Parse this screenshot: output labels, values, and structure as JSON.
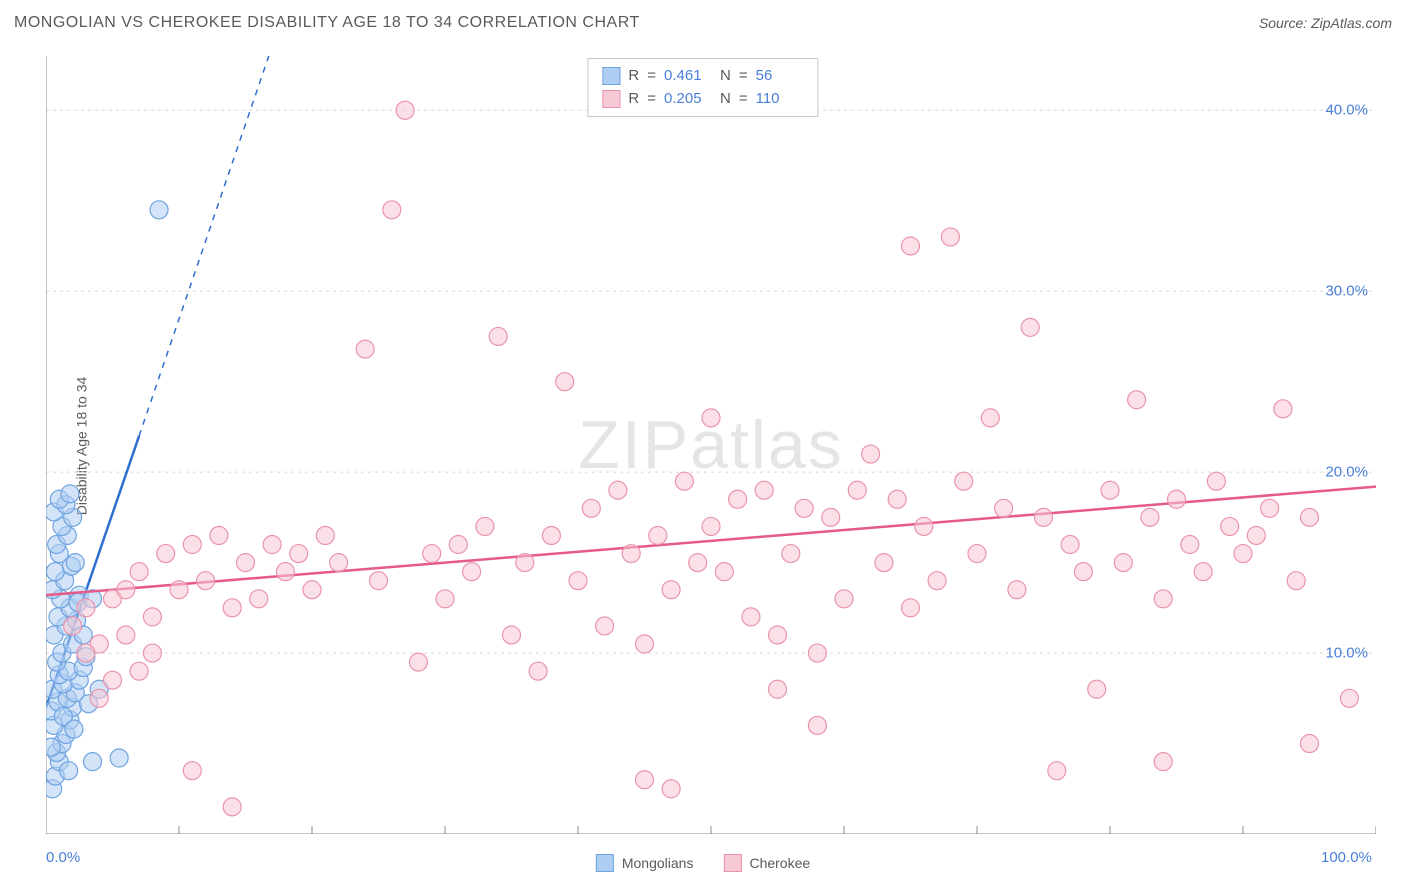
{
  "header": {
    "title": "MONGOLIAN VS CHEROKEE DISABILITY AGE 18 TO 34 CORRELATION CHART",
    "source_prefix": "Source: ",
    "source": "ZipAtlas.com"
  },
  "watermark": {
    "a": "ZIP",
    "b": "atlas"
  },
  "chart": {
    "type": "scatter",
    "ylabel": "Disability Age 18 to 34",
    "xlim": [
      0,
      100
    ],
    "ylim": [
      0,
      43
    ],
    "xticks": [
      0,
      10,
      20,
      30,
      40,
      50,
      60,
      70,
      80,
      90,
      100
    ],
    "xtick_labels": {
      "0": "0.0%",
      "100": "100.0%"
    },
    "yticks": [
      10,
      20,
      30,
      40
    ],
    "ytick_labels": {
      "10": "10.0%",
      "20": "20.0%",
      "30": "30.0%",
      "40": "40.0%"
    },
    "background_color": "#ffffff",
    "grid_color": "#d8d8d8",
    "axis_color": "#888888",
    "tick_label_color": "#4a7fd8",
    "marker_radius": 9,
    "marker_stroke_width": 1.2,
    "trend_line_width": 2.5,
    "series": [
      {
        "key": "mongolians",
        "name": "Mongolians",
        "fill": "#aecdf2",
        "stroke": "#6fa3e0",
        "trend_color": "#2f6fd0",
        "R": "0.461",
        "N": "56",
        "trend": {
          "x1": 0,
          "y1": 7,
          "x2_solid": 7,
          "y2_solid": 22,
          "x2_dash": 20,
          "y2_dash": 50
        },
        "points": [
          [
            0.5,
            2.5
          ],
          [
            0.7,
            3.2
          ],
          [
            1.0,
            4.0
          ],
          [
            0.8,
            4.5
          ],
          [
            1.2,
            5.0
          ],
          [
            1.5,
            5.5
          ],
          [
            0.6,
            6.0
          ],
          [
            1.8,
            6.3
          ],
          [
            0.4,
            6.8
          ],
          [
            2.0,
            7.0
          ],
          [
            0.9,
            7.3
          ],
          [
            1.6,
            7.5
          ],
          [
            2.2,
            7.8
          ],
          [
            0.5,
            8.0
          ],
          [
            1.3,
            8.3
          ],
          [
            2.5,
            8.5
          ],
          [
            1.0,
            8.8
          ],
          [
            1.7,
            9.0
          ],
          [
            0.8,
            9.5
          ],
          [
            2.8,
            9.2
          ],
          [
            3.5,
            4.0
          ],
          [
            5.5,
            4.2
          ],
          [
            1.2,
            10.0
          ],
          [
            2.0,
            10.5
          ],
          [
            0.6,
            11.0
          ],
          [
            1.5,
            11.5
          ],
          [
            2.3,
            11.8
          ],
          [
            0.9,
            12.0
          ],
          [
            1.8,
            12.5
          ],
          [
            3.0,
            9.8
          ],
          [
            1.1,
            13.0
          ],
          [
            0.5,
            13.5
          ],
          [
            2.5,
            13.2
          ],
          [
            1.4,
            14.0
          ],
          [
            0.7,
            14.5
          ],
          [
            1.9,
            14.8
          ],
          [
            1.0,
            15.5
          ],
          [
            2.2,
            15.0
          ],
          [
            0.8,
            16.0
          ],
          [
            1.6,
            16.5
          ],
          [
            1.2,
            17.0
          ],
          [
            2.0,
            17.5
          ],
          [
            0.6,
            17.8
          ],
          [
            1.5,
            18.2
          ],
          [
            1.0,
            18.5
          ],
          [
            1.8,
            18.8
          ],
          [
            2.4,
            12.8
          ],
          [
            8.5,
            34.5
          ],
          [
            3.2,
            7.2
          ],
          [
            4.0,
            8.0
          ],
          [
            2.8,
            11.0
          ],
          [
            3.5,
            13.0
          ],
          [
            1.3,
            6.5
          ],
          [
            2.1,
            5.8
          ],
          [
            0.4,
            4.8
          ],
          [
            1.7,
            3.5
          ]
        ]
      },
      {
        "key": "cherokee",
        "name": "Cherokee",
        "fill": "#f7c9d4",
        "stroke": "#ea94ac",
        "trend_color": "#e65a8a",
        "R": "0.205",
        "N": "110",
        "trend": {
          "x1": 0,
          "y1": 13.2,
          "x2_solid": 100,
          "y2_solid": 19.2
        },
        "points": [
          [
            2,
            11.5
          ],
          [
            3,
            12.5
          ],
          [
            4,
            10.5
          ],
          [
            5,
            13.0
          ],
          [
            6,
            11.0
          ],
          [
            7,
            14.5
          ],
          [
            8,
            12.0
          ],
          [
            9,
            15.5
          ],
          [
            10,
            13.5
          ],
          [
            11,
            16.0
          ],
          [
            12,
            14.0
          ],
          [
            13,
            16.5
          ],
          [
            14,
            12.5
          ],
          [
            15,
            15.0
          ],
          [
            16,
            13.0
          ],
          [
            17,
            16.0
          ],
          [
            18,
            14.5
          ],
          [
            19,
            15.5
          ],
          [
            20,
            13.5
          ],
          [
            21,
            16.5
          ],
          [
            22,
            15.0
          ],
          [
            24,
            26.8
          ],
          [
            25,
            14.0
          ],
          [
            26,
            34.5
          ],
          [
            27,
            40.0
          ],
          [
            14,
            1.5
          ],
          [
            28,
            9.5
          ],
          [
            29,
            15.5
          ],
          [
            30,
            13.0
          ],
          [
            31,
            16.0
          ],
          [
            32,
            14.5
          ],
          [
            33,
            17.0
          ],
          [
            34,
            27.5
          ],
          [
            35,
            11.0
          ],
          [
            36,
            15.0
          ],
          [
            37,
            9.0
          ],
          [
            38,
            16.5
          ],
          [
            39,
            25.0
          ],
          [
            40,
            14.0
          ],
          [
            41,
            18.0
          ],
          [
            42,
            11.5
          ],
          [
            43,
            19.0
          ],
          [
            44,
            15.5
          ],
          [
            45,
            3.0
          ],
          [
            45,
            10.5
          ],
          [
            46,
            16.5
          ],
          [
            47,
            13.5
          ],
          [
            47,
            2.5
          ],
          [
            48,
            19.5
          ],
          [
            49,
            15.0
          ],
          [
            50,
            17.0
          ],
          [
            50,
            23.0
          ],
          [
            51,
            14.5
          ],
          [
            52,
            18.5
          ],
          [
            53,
            12.0
          ],
          [
            54,
            19.0
          ],
          [
            55,
            11.0
          ],
          [
            55,
            8.0
          ],
          [
            56,
            15.5
          ],
          [
            57,
            18.0
          ],
          [
            58,
            10.0
          ],
          [
            58,
            6.0
          ],
          [
            59,
            17.5
          ],
          [
            60,
            13.0
          ],
          [
            61,
            19.0
          ],
          [
            62,
            21.0
          ],
          [
            63,
            15.0
          ],
          [
            64,
            18.5
          ],
          [
            65,
            12.5
          ],
          [
            65,
            32.5
          ],
          [
            66,
            17.0
          ],
          [
            67,
            14.0
          ],
          [
            68,
            33.0
          ],
          [
            69,
            19.5
          ],
          [
            70,
            15.5
          ],
          [
            71,
            23.0
          ],
          [
            72,
            18.0
          ],
          [
            73,
            13.5
          ],
          [
            74,
            28.0
          ],
          [
            75,
            17.5
          ],
          [
            76,
            3.5
          ],
          [
            77,
            16.0
          ],
          [
            78,
            14.5
          ],
          [
            79,
            8.0
          ],
          [
            80,
            19.0
          ],
          [
            81,
            15.0
          ],
          [
            82,
            24.0
          ],
          [
            83,
            17.5
          ],
          [
            84,
            13.0
          ],
          [
            84,
            4.0
          ],
          [
            85,
            18.5
          ],
          [
            86,
            16.0
          ],
          [
            87,
            14.5
          ],
          [
            88,
            19.5
          ],
          [
            89,
            17.0
          ],
          [
            90,
            15.5
          ],
          [
            91,
            16.5
          ],
          [
            92,
            18.0
          ],
          [
            93,
            23.5
          ],
          [
            94,
            14.0
          ],
          [
            95,
            17.5
          ],
          [
            95,
            5.0
          ],
          [
            11,
            3.5
          ],
          [
            7,
            9.0
          ],
          [
            5,
            8.5
          ],
          [
            3,
            10.0
          ],
          [
            4,
            7.5
          ],
          [
            6,
            13.5
          ],
          [
            8,
            10.0
          ],
          [
            98,
            7.5
          ]
        ]
      }
    ],
    "stats_box": {
      "r_label": "R",
      "n_label": "N",
      "eq": "="
    },
    "legend": {
      "items": [
        "Mongolians",
        "Cherokee"
      ]
    }
  }
}
